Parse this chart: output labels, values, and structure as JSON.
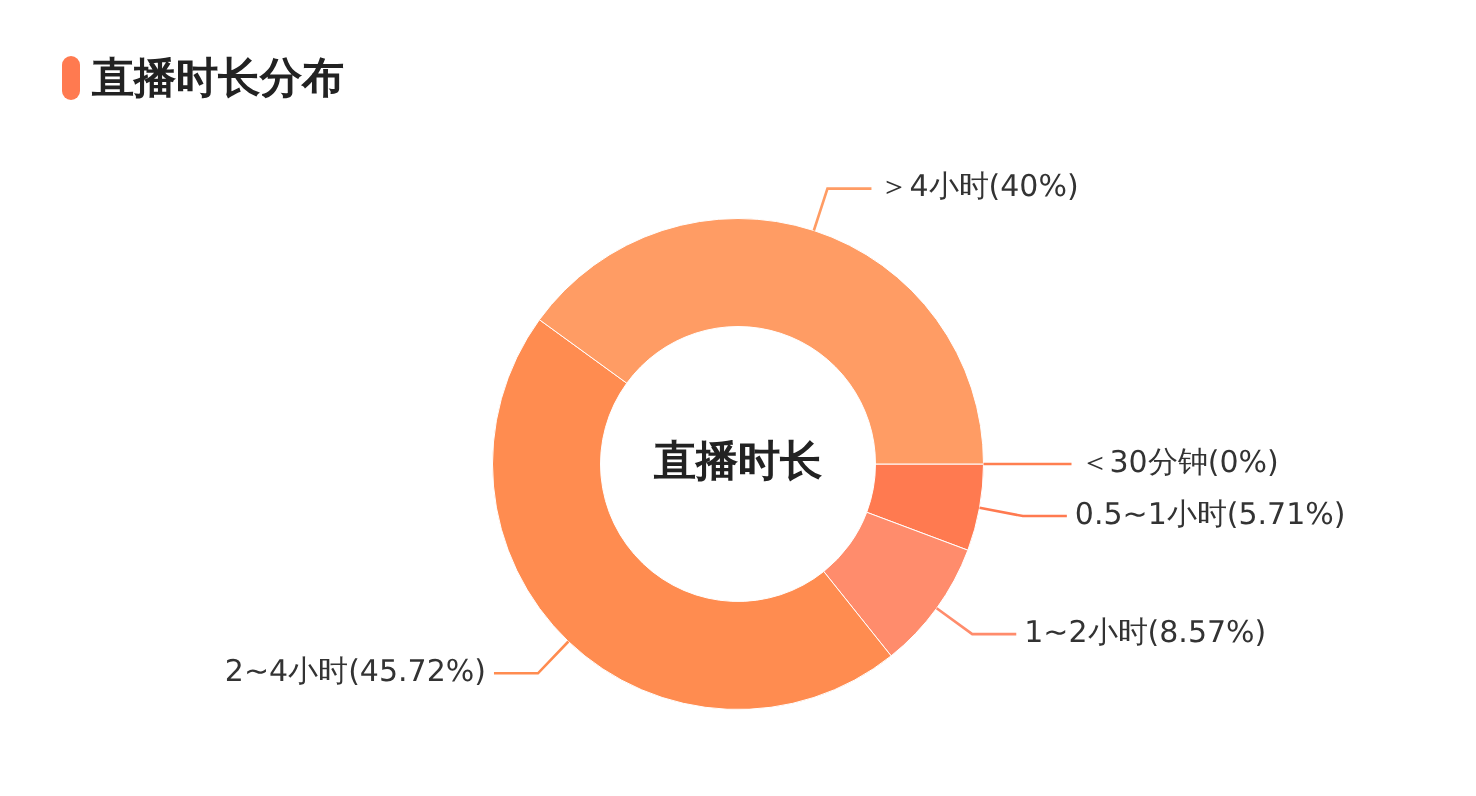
{
  "chart_data": {
    "type": "donut",
    "title": "直播时长分布",
    "annotations": [
      "直播时长"
    ],
    "categories": [
      "＜30分钟",
      "0.5~1小时",
      "1~2小时",
      "2~4小时",
      "＞4小时"
    ],
    "values": [
      0,
      5.71,
      8.57,
      45.72,
      40
    ],
    "value_labels": [
      "(0%)",
      "(5.71%)",
      "(8.57%)",
      "(45.72%)",
      "(40%)"
    ],
    "colors": [
      "#ff7f50",
      "#ff7a50",
      "#ff8c6c",
      "#ff8c50",
      "#ff9c64"
    ]
  }
}
